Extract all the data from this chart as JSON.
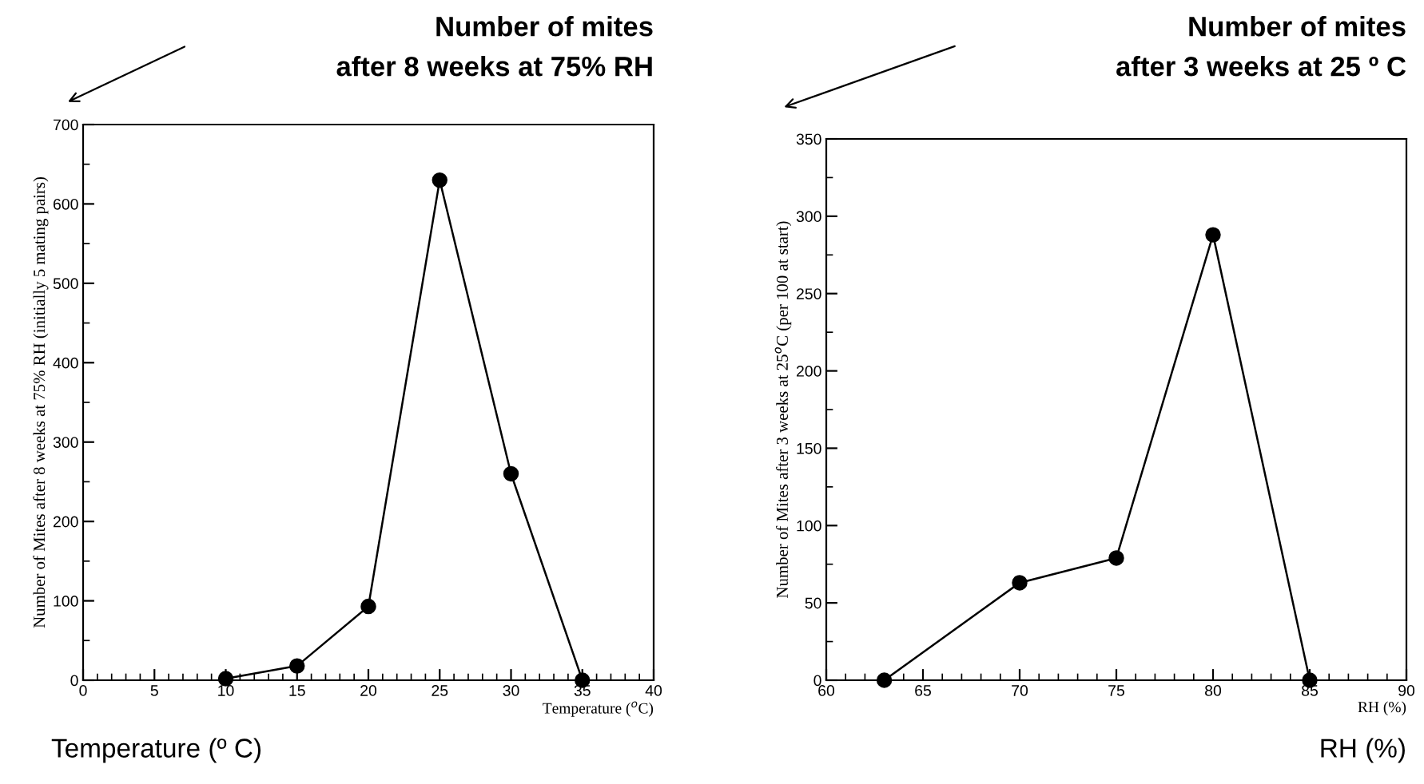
{
  "chart_data": [
    {
      "type": "line",
      "title": "Number of mites\nafter 8 weeks at 75% RH",
      "xlabel": "Temperature ($^{o}$C)",
      "ylabel": "Number of Mites after 8 weeks at 75% RH (initially 5 mating pairs)",
      "annotations": [
        "Temperature (º C)"
      ],
      "series": [
        {
          "x": [
            10,
            15,
            20,
            25,
            30,
            35
          ],
          "values": [
            2,
            18,
            93,
            630,
            260,
            0
          ],
          "color": "#000000"
        }
      ],
      "xlim": [
        0,
        40
      ],
      "xticks": [
        0,
        5,
        10,
        15,
        20,
        25,
        30,
        35,
        40
      ],
      "ylim": [
        0,
        700
      ],
      "yticks": [
        0,
        100,
        200,
        300,
        400,
        500,
        600,
        700
      ],
      "marker": "circle",
      "line_style": "solid",
      "grid": false,
      "legend": false
    },
    {
      "type": "line",
      "title": "Number of mites\nafter 3 weeks at 25 º C",
      "xlabel": "RH (%)",
      "ylabel": "Number of Mites after 3 weeks at 25$^{o}$C (per 100 at start)",
      "annotations": [
        "RH (%)"
      ],
      "series": [
        {
          "x": [
            63,
            70,
            75,
            80,
            85
          ],
          "values": [
            0,
            63,
            79,
            288,
            0
          ],
          "color": "#000000"
        }
      ],
      "xlim": [
        60,
        90
      ],
      "xticks": [
        60,
        65,
        70,
        75,
        80,
        85,
        90
      ],
      "ylim": [
        0,
        350
      ],
      "yticks": [
        0,
        50,
        100,
        150,
        200,
        250,
        300,
        350
      ],
      "marker": "circle",
      "line_style": "solid",
      "grid": false,
      "legend": false
    }
  ]
}
